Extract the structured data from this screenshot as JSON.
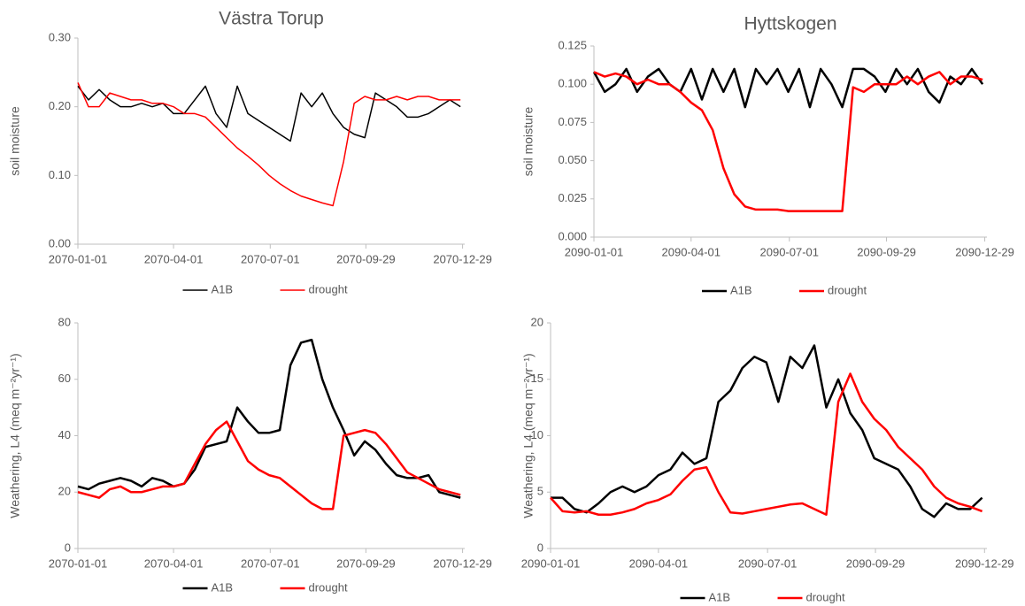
{
  "chart_data": [
    {
      "type": "line",
      "title": "Västra Torup",
      "ylabel": "soil moisture",
      "x": [
        "2070-01-01",
        "2070-01-11",
        "2070-01-21",
        "2070-01-31",
        "2070-02-10",
        "2070-02-20",
        "2070-03-02",
        "2070-03-12",
        "2070-03-22",
        "2070-04-01",
        "2070-04-11",
        "2070-04-21",
        "2070-05-01",
        "2070-05-11",
        "2070-05-21",
        "2070-05-31",
        "2070-06-10",
        "2070-06-20",
        "2070-06-30",
        "2070-07-10",
        "2070-07-20",
        "2070-07-30",
        "2070-08-09",
        "2070-08-19",
        "2070-08-29",
        "2070-09-08",
        "2070-09-18",
        "2070-09-28",
        "2070-10-08",
        "2070-10-18",
        "2070-10-28",
        "2070-11-07",
        "2070-11-17",
        "2070-11-27",
        "2070-12-07",
        "2070-12-17",
        "2070-12-27"
      ],
      "series": [
        {
          "name": "A1B",
          "color": "#000000",
          "values": [
            0.23,
            0.21,
            0.225,
            0.21,
            0.2,
            0.2,
            0.205,
            0.2,
            0.205,
            0.19,
            0.19,
            0.21,
            0.23,
            0.19,
            0.17,
            0.23,
            0.19,
            0.18,
            0.17,
            0.16,
            0.15,
            0.22,
            0.2,
            0.22,
            0.19,
            0.17,
            0.16,
            0.155,
            0.22,
            0.21,
            0.2,
            0.185,
            0.185,
            0.19,
            0.2,
            0.21,
            0.2
          ]
        },
        {
          "name": "drought",
          "color": "#ff0000",
          "values": [
            0.235,
            0.2,
            0.2,
            0.22,
            0.215,
            0.21,
            0.21,
            0.205,
            0.205,
            0.2,
            0.19,
            0.19,
            0.185,
            0.17,
            0.155,
            0.14,
            0.128,
            0.115,
            0.1,
            0.088,
            0.078,
            0.07,
            0.065,
            0.06,
            0.056,
            0.12,
            0.205,
            0.215,
            0.21,
            0.21,
            0.215,
            0.21,
            0.215,
            0.215,
            0.21,
            0.21,
            0.21
          ]
        }
      ],
      "xlim": [
        "2070-01-01",
        "2070-12-31"
      ],
      "xticks": [
        "2070-01-01",
        "2070-04-01",
        "2070-07-01",
        "2070-09-29",
        "2070-12-29"
      ],
      "ylim": [
        0,
        0.3
      ],
      "yticks": [
        {
          "value": 0,
          "label": "0.00"
        },
        {
          "value": 0.1,
          "label": "0.10"
        },
        {
          "value": 0.2,
          "label": "0.20"
        },
        {
          "value": 0.3,
          "label": "0.30"
        }
      ]
    },
    {
      "type": "line",
      "title": "Hyttskogen",
      "ylabel": "soil moisture",
      "x": [
        "2090-01-01",
        "2090-01-11",
        "2090-01-21",
        "2090-01-31",
        "2090-02-10",
        "2090-02-20",
        "2090-03-02",
        "2090-03-12",
        "2090-03-22",
        "2090-04-01",
        "2090-04-11",
        "2090-04-21",
        "2090-05-01",
        "2090-05-11",
        "2090-05-21",
        "2090-05-31",
        "2090-06-10",
        "2090-06-20",
        "2090-06-30",
        "2090-07-10",
        "2090-07-20",
        "2090-07-30",
        "2090-08-09",
        "2090-08-19",
        "2090-08-29",
        "2090-09-08",
        "2090-09-18",
        "2090-09-28",
        "2090-10-08",
        "2090-10-18",
        "2090-10-28",
        "2090-11-07",
        "2090-11-17",
        "2090-11-27",
        "2090-12-07",
        "2090-12-17",
        "2090-12-27"
      ],
      "series": [
        {
          "name": "A1B",
          "color": "#000000",
          "values": [
            0.108,
            0.095,
            0.1,
            0.11,
            0.095,
            0.105,
            0.11,
            0.1,
            0.095,
            0.11,
            0.09,
            0.11,
            0.095,
            0.11,
            0.085,
            0.11,
            0.1,
            0.11,
            0.095,
            0.11,
            0.085,
            0.11,
            0.1,
            0.085,
            0.11,
            0.11,
            0.105,
            0.095,
            0.11,
            0.1,
            0.11,
            0.095,
            0.088,
            0.105,
            0.1,
            0.11,
            0.1
          ]
        },
        {
          "name": "drought",
          "color": "#ff0000",
          "values": [
            0.108,
            0.105,
            0.107,
            0.105,
            0.1,
            0.103,
            0.1,
            0.1,
            0.095,
            0.088,
            0.083,
            0.07,
            0.045,
            0.028,
            0.02,
            0.018,
            0.018,
            0.018,
            0.017,
            0.017,
            0.017,
            0.017,
            0.017,
            0.017,
            0.098,
            0.095,
            0.1,
            0.1,
            0.1,
            0.105,
            0.1,
            0.105,
            0.108,
            0.1,
            0.105,
            0.105,
            0.103
          ]
        }
      ],
      "xlim": [
        "2090-01-01",
        "2090-12-31"
      ],
      "xticks": [
        "2090-01-01",
        "2090-04-01",
        "2090-07-01",
        "2090-09-29",
        "2090-12-29"
      ],
      "ylim": [
        0,
        0.125
      ],
      "yticks": [
        {
          "value": 0,
          "label": "0.000"
        },
        0.025,
        {
          "value": 0.05,
          "label": "0.050"
        },
        0.075,
        {
          "value": 0.1,
          "label": "0.100"
        },
        0.125
      ]
    },
    {
      "type": "line",
      "ylabel": "Weathering, L4 (meq m⁻²yr⁻¹)",
      "x": [
        "2070-01-01",
        "2070-01-11",
        "2070-01-21",
        "2070-01-31",
        "2070-02-10",
        "2070-02-20",
        "2070-03-02",
        "2070-03-12",
        "2070-03-22",
        "2070-04-01",
        "2070-04-11",
        "2070-04-21",
        "2070-05-01",
        "2070-05-11",
        "2070-05-21",
        "2070-05-31",
        "2070-06-10",
        "2070-06-20",
        "2070-06-30",
        "2070-07-10",
        "2070-07-20",
        "2070-07-30",
        "2070-08-09",
        "2070-08-19",
        "2070-08-29",
        "2070-09-08",
        "2070-09-18",
        "2070-09-28",
        "2070-10-08",
        "2070-10-18",
        "2070-10-28",
        "2070-11-07",
        "2070-11-17",
        "2070-11-27",
        "2070-12-07",
        "2070-12-17",
        "2070-12-27"
      ],
      "series": [
        {
          "name": "A1B",
          "color": "#000000",
          "values": [
            22,
            21,
            23,
            24,
            25,
            24,
            22,
            25,
            24,
            22,
            23,
            28,
            36,
            37,
            38,
            50,
            45,
            41,
            41,
            42,
            65,
            73,
            74,
            60,
            50,
            42,
            33,
            38,
            35,
            30,
            26,
            25,
            25,
            26,
            20,
            19,
            18
          ]
        },
        {
          "name": "drought",
          "color": "#ff0000",
          "values": [
            20,
            19,
            18,
            21,
            22,
            20,
            20,
            21,
            22,
            22,
            23,
            30,
            37,
            42,
            45,
            38,
            31,
            28,
            26,
            25,
            22,
            19,
            16,
            14,
            14,
            40,
            41,
            42,
            41,
            37,
            32,
            27,
            25,
            23,
            21,
            20,
            19
          ]
        }
      ],
      "xlim": [
        "2070-01-01",
        "2070-12-31"
      ],
      "xticks": [
        "2070-01-01",
        "2070-04-01",
        "2070-07-01",
        "2070-09-29",
        "2070-12-29"
      ],
      "ylim": [
        0,
        80
      ],
      "yticks": [
        0,
        20,
        40,
        60,
        80
      ]
    },
    {
      "type": "line",
      "ylabel": "Weathering, L4 (meq m⁻²yr⁻¹)",
      "x": [
        "2090-01-01",
        "2090-01-11",
        "2090-01-21",
        "2090-01-31",
        "2090-02-10",
        "2090-02-20",
        "2090-03-02",
        "2090-03-12",
        "2090-03-22",
        "2090-04-01",
        "2090-04-11",
        "2090-04-21",
        "2090-05-01",
        "2090-05-11",
        "2090-05-21",
        "2090-05-31",
        "2090-06-10",
        "2090-06-20",
        "2090-06-30",
        "2090-07-10",
        "2090-07-20",
        "2090-07-30",
        "2090-08-09",
        "2090-08-19",
        "2090-08-29",
        "2090-09-08",
        "2090-09-18",
        "2090-09-28",
        "2090-10-08",
        "2090-10-18",
        "2090-10-28",
        "2090-11-07",
        "2090-11-17",
        "2090-11-27",
        "2090-12-07",
        "2090-12-17",
        "2090-12-27"
      ],
      "series": [
        {
          "name": "A1B",
          "color": "#000000",
          "values": [
            4.5,
            4.5,
            3.5,
            3.2,
            4,
            5,
            5.5,
            5,
            5.5,
            6.5,
            7,
            8.5,
            7.5,
            8,
            13,
            14,
            16,
            17,
            16.5,
            13,
            17,
            16,
            18,
            12.5,
            15,
            12,
            10.5,
            8,
            7.5,
            7,
            5.5,
            3.5,
            2.8,
            4,
            3.5,
            3.5,
            4.5
          ]
        },
        {
          "name": "drought",
          "color": "#ff0000",
          "values": [
            4.5,
            3.3,
            3.2,
            3.3,
            3,
            3,
            3.2,
            3.5,
            4,
            4.3,
            4.8,
            6,
            7,
            7.2,
            5,
            3.2,
            3.1,
            3.3,
            3.5,
            3.7,
            3.9,
            4,
            3.5,
            3,
            13,
            15.5,
            13,
            11.5,
            10.5,
            9,
            8,
            7,
            5.5,
            4.5,
            4,
            3.7,
            3.3
          ]
        }
      ],
      "xlim": [
        "2090-01-01",
        "2090-12-31"
      ],
      "xticks": [
        "2090-01-01",
        "2090-04-01",
        "2090-07-01",
        "2090-09-29",
        "2090-12-29"
      ],
      "ylim": [
        0,
        20
      ],
      "yticks": [
        0,
        5,
        10,
        15,
        20
      ]
    }
  ]
}
